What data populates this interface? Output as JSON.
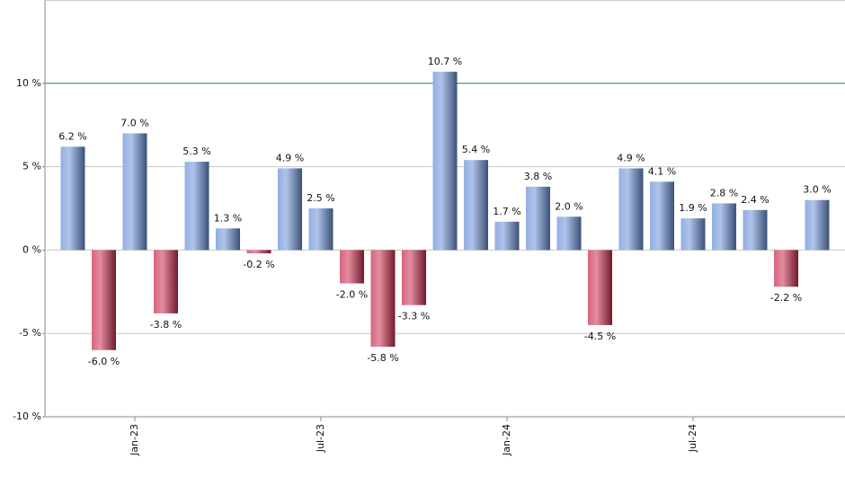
{
  "chart_data": {
    "type": "bar",
    "categories": [
      null,
      null,
      "Jan-23",
      null,
      null,
      null,
      null,
      null,
      "Jul-23",
      null,
      null,
      null,
      null,
      null,
      "Jan-24",
      null,
      null,
      null,
      null,
      null,
      "Jul-24",
      null,
      null,
      null,
      null
    ],
    "values": [
      6.2,
      -6.0,
      7.0,
      -3.8,
      5.3,
      1.3,
      -0.2,
      4.9,
      2.5,
      -2.0,
      -5.8,
      -3.3,
      10.7,
      5.4,
      1.7,
      3.8,
      2.0,
      -4.5,
      4.9,
      4.1,
      1.9,
      2.8,
      2.4,
      -2.2,
      3.0
    ],
    "value_labels": [
      "6.2 %",
      "-6.0 %",
      "7.0 %",
      "-3.8 %",
      "5.3 %",
      "1.3 %",
      "-0.2 %",
      "4.9 %",
      "2.5 %",
      "-2.0 %",
      "-5.8 %",
      "-3.3 %",
      "10.7 %",
      "5.4 %",
      "1.7 %",
      "3.8 %",
      "2.0 %",
      "-4.5 %",
      "4.9 %",
      "4.1 %",
      "1.9 %",
      "2.8 %",
      "2.4 %",
      "-2.2 %",
      "3.0 %"
    ],
    "color_positive": "#6d93d8",
    "color_negative": "#cc2f52",
    "ylim": [
      -10,
      15
    ],
    "yticks": [
      {
        "value": -10,
        "label": "-10 %"
      },
      {
        "value": -5,
        "label": "-5 %"
      },
      {
        "value": 0,
        "label": "0 %"
      },
      {
        "value": 5,
        "label": "5 %"
      },
      {
        "value": 10,
        "label": "10 %"
      }
    ],
    "grid": true,
    "grid_color": "#c8c8c8",
    "highlight_line": {
      "value": 10,
      "color": "#2f7d2f"
    }
  }
}
